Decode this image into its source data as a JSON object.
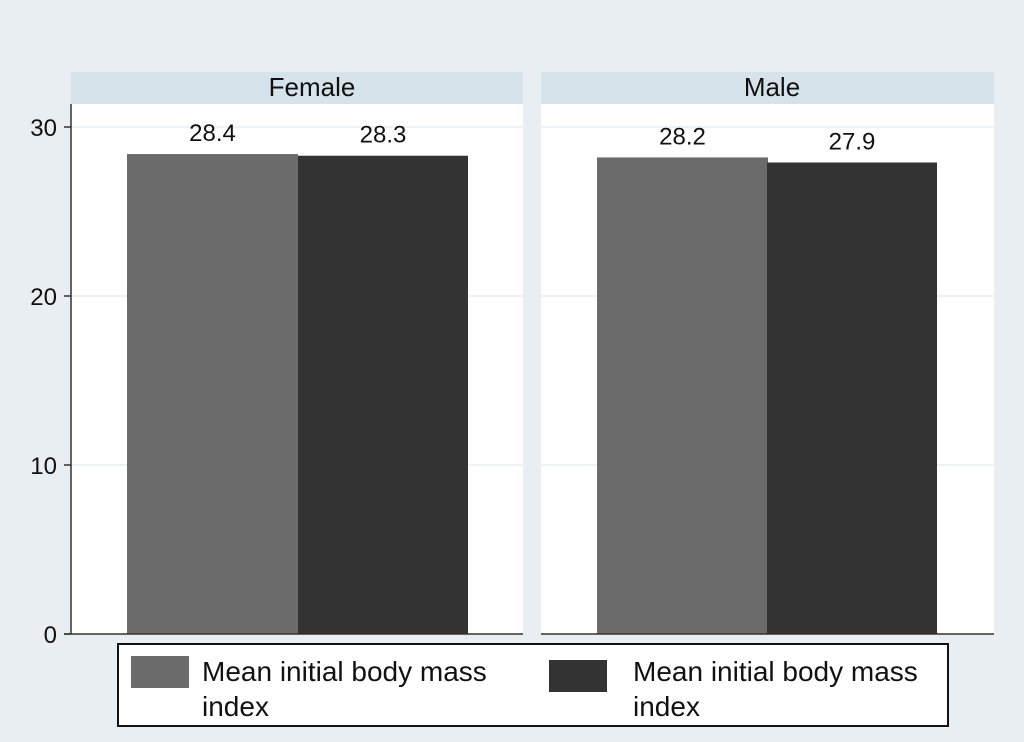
{
  "chart_data": {
    "type": "bar",
    "title": "",
    "xlabel": "",
    "ylabel": "",
    "ylim": [
      0,
      30
    ],
    "yticks": [
      0,
      10,
      20,
      30
    ],
    "grid": true,
    "legend_position": "bottom",
    "panels": [
      {
        "title": "Female",
        "series": [
          {
            "value": 28.4,
            "label": "28.4"
          },
          {
            "value": 28.3,
            "label": "28.3"
          }
        ]
      },
      {
        "title": "Male",
        "series": [
          {
            "value": 28.2,
            "label": "28.2"
          },
          {
            "value": 27.9,
            "label": "27.9"
          }
        ]
      }
    ],
    "legend": [
      {
        "label_line1": "Mean initial body mass",
        "label_line2": "index",
        "color": "#6b6b6b"
      },
      {
        "label_line1": "Mean initial body mass",
        "label_line2": "index",
        "color": "#333333"
      }
    ],
    "colors": {
      "background": "#e8eef2",
      "panel_header": "#d7e3ea",
      "plot_area": "#ffffff",
      "gridline": "#e9eef2",
      "bar_1": "#6b6b6b",
      "bar_2": "#333333"
    }
  }
}
